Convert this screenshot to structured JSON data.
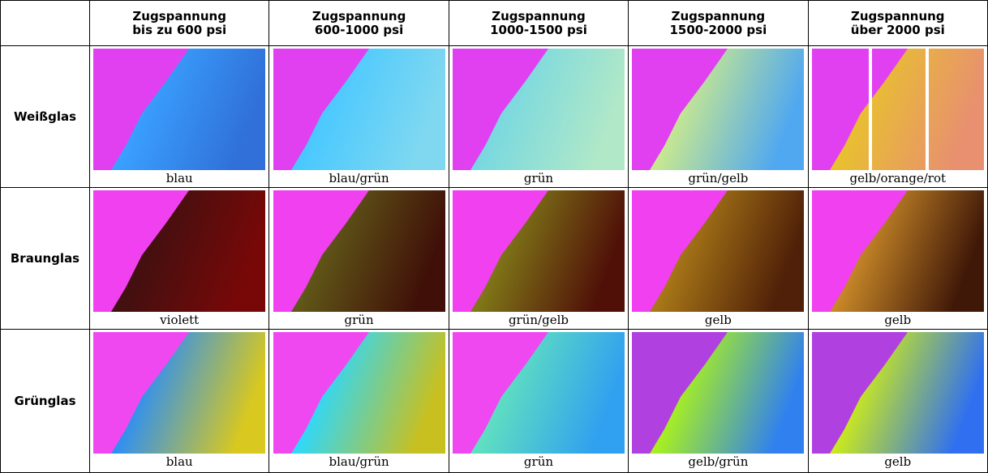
{
  "table": {
    "columns": [
      {
        "line1": "Zugspannung",
        "line2": "bis zu 600 psi"
      },
      {
        "line1": "Zugspannung",
        "line2": "600-1000 psi"
      },
      {
        "line1": "Zugspannung",
        "line2": "1000-1500 psi"
      },
      {
        "line1": "Zugspannung",
        "line2": "1500-2000 psi"
      },
      {
        "line1": "Zugspannung",
        "line2": "über 2000 psi"
      }
    ],
    "rows": [
      {
        "label": "Weißglas",
        "captions": [
          "blau",
          "blau/grün",
          "grün",
          "grün/gelb",
          "gelb/orange/rot"
        ]
      },
      {
        "label": "Braunglas",
        "captions": [
          "violett",
          "grün",
          "grün/gelb",
          "gelb",
          "gelb"
        ]
      },
      {
        "label": "Grünglas",
        "captions": [
          "blau",
          "blau/grün",
          "grün",
          "gelb/grün",
          "gelb"
        ]
      }
    ]
  }
}
